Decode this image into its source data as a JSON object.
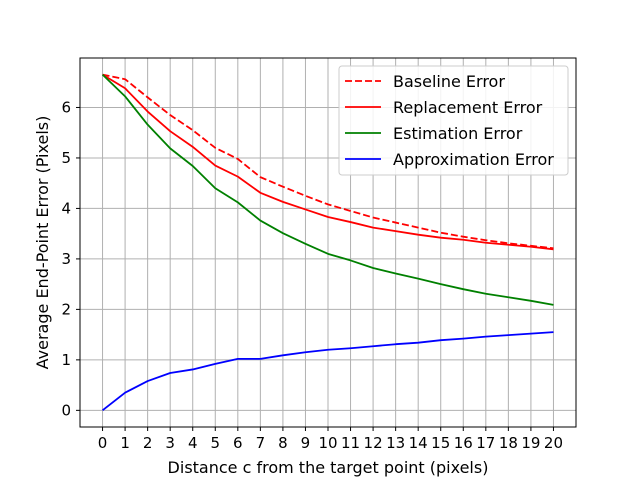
{
  "chart_data": {
    "type": "line",
    "title": "",
    "xlabel": "Distance c from the target point (pixels)",
    "ylabel": "Average End-Point Error (Pixels)",
    "x": [
      0,
      1,
      2,
      3,
      4,
      5,
      6,
      7,
      8,
      9,
      10,
      11,
      12,
      13,
      14,
      15,
      16,
      17,
      18,
      19,
      20
    ],
    "xticks": [
      "0",
      "1",
      "2",
      "3",
      "4",
      "5",
      "6",
      "7",
      "8",
      "9",
      "10",
      "11",
      "12",
      "13",
      "14",
      "15",
      "16",
      "17",
      "18",
      "19",
      "20"
    ],
    "yticks": [
      "0",
      "1",
      "2",
      "3",
      "4",
      "5",
      "6"
    ],
    "xlim": [
      -1,
      21
    ],
    "ylim": [
      -0.33,
      6.98
    ],
    "grid": true,
    "legend_position": "upper right",
    "series": [
      {
        "name": "Baseline Error",
        "color": "#ff0000",
        "dash": "dashed",
        "values": [
          6.65,
          6.56,
          6.2,
          5.85,
          5.55,
          5.2,
          4.98,
          4.62,
          4.43,
          4.25,
          4.08,
          3.95,
          3.82,
          3.72,
          3.62,
          3.52,
          3.44,
          3.37,
          3.31,
          3.26,
          3.21
        ]
      },
      {
        "name": "Replacement Error",
        "color": "#ff0000",
        "dash": "solid",
        "values": [
          6.65,
          6.38,
          5.92,
          5.53,
          5.22,
          4.85,
          4.63,
          4.31,
          4.13,
          3.98,
          3.83,
          3.73,
          3.62,
          3.55,
          3.48,
          3.42,
          3.38,
          3.32,
          3.28,
          3.24,
          3.19
        ]
      },
      {
        "name": "Estimation Error",
        "color": "#008000",
        "dash": "solid",
        "values": [
          6.65,
          6.22,
          5.66,
          5.19,
          4.84,
          4.4,
          4.12,
          3.76,
          3.51,
          3.3,
          3.1,
          2.97,
          2.82,
          2.71,
          2.61,
          2.5,
          2.4,
          2.31,
          2.24,
          2.17,
          2.09
        ]
      },
      {
        "name": "Approximation Error",
        "color": "#0000ff",
        "dash": "solid",
        "values": [
          0.0,
          0.35,
          0.58,
          0.74,
          0.81,
          0.92,
          1.02,
          1.02,
          1.09,
          1.15,
          1.2,
          1.23,
          1.27,
          1.31,
          1.34,
          1.39,
          1.42,
          1.46,
          1.49,
          1.52,
          1.55
        ]
      }
    ]
  }
}
